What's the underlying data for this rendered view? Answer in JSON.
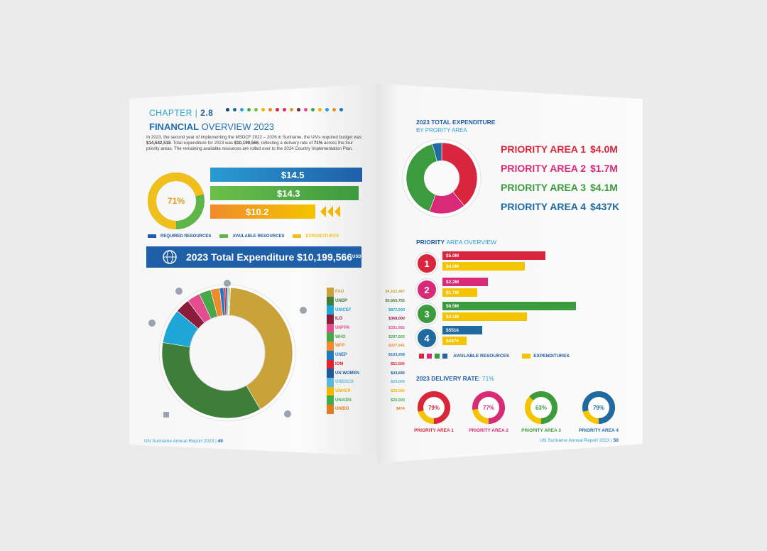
{
  "left_page": {
    "chapter_word": "CHAPTER |",
    "chapter_num": "2.8",
    "title_bold": "FINANCIAL",
    "title_rest": "OVERVIEW 2023",
    "intro_1": "In 2023, the second year of implementing the MSDCF 2022 – 2026 in Suriname, the UN's required budget was ",
    "intro_b1": "$14,542,518",
    "intro_2": ". Total expenditure for 2023 was ",
    "intro_b2": "$10,199,566",
    "intro_3": ", reflecting a delivery rate of ",
    "intro_b3": "71%",
    "intro_4": " across the four priority areas. The remaining available resources are rolled over to the 2024 Country Implementation Plan.",
    "delivery_pct": "71%",
    "resources": {
      "required": "$14.5",
      "available": "$14.3",
      "expenditures": "$10.2"
    },
    "legend": {
      "required": "REQUIRED RESOURCES",
      "available": "AVAILABLE RESOURCES",
      "expenditures": "EXPENDITURES"
    },
    "banner": {
      "text": "2023 Total Expenditure $10,199,566",
      "sup": "USD"
    },
    "agencies": [
      {
        "name": "FAO",
        "value": "$4,162,487",
        "color": "#c9a23a"
      },
      {
        "name": "UNDP",
        "value": "$3,665,755",
        "color": "#3f7d3b"
      },
      {
        "name": "UNICEF",
        "value": "$872,900",
        "color": "#1fa6d6"
      },
      {
        "name": "ILO",
        "value": "$368,000",
        "color": "#8b1d3b"
      },
      {
        "name": "UNFPA",
        "value": "$331,982",
        "color": "#e34c8d"
      },
      {
        "name": "WHO",
        "value": "$297,903",
        "color": "#46a84a"
      },
      {
        "name": "WFP",
        "value": "$227,041",
        "color": "#f08a2a"
      },
      {
        "name": "UNEP",
        "value": "$103,268",
        "color": "#1f79c2"
      },
      {
        "name": "IOM",
        "value": "$51,500",
        "color": "#e0232f"
      },
      {
        "name": "UN WOMEN",
        "value": "$43,836",
        "color": "#1e5a9c"
      },
      {
        "name": "UNESCO",
        "value": "$29,800",
        "color": "#5bb6e0"
      },
      {
        "name": "UNHCR",
        "value": "$25,000",
        "color": "#f5b400"
      },
      {
        "name": "UNAIDS",
        "value": "$20,500",
        "color": "#3fae4a"
      },
      {
        "name": "UNIDO",
        "value": "$474",
        "color": "#e07b1f"
      }
    ],
    "footer_text": "UN Suriname Annual Report 2023 |",
    "footer_page": "49"
  },
  "right_page": {
    "exp_title": "2023 TOTAL EXPENDITURE",
    "exp_sub": "BY PRORITY AREA",
    "priority_areas": [
      {
        "label": "PRIORITY AREA 1",
        "amount": "$4.0M",
        "color": "#d9263f"
      },
      {
        "label": "PRIORITY AREA 2",
        "amount": "$1.7M",
        "color": "#d92a78"
      },
      {
        "label": "PRIORITY AREA 3",
        "amount": "$4.1M",
        "color": "#3c9a3f"
      },
      {
        "label": "PRIORITY AREA 4",
        "amount": "$437K",
        "color": "#1f6aa0"
      }
    ],
    "overview_title_bold": "PRIORITY",
    "overview_title_rest": "AREA OVERVIEW",
    "overview": [
      {
        "num": "1",
        "available": "$5.0M",
        "available_value": 5.0,
        "expenditure": "$4.0M",
        "expenditure_value": 4.0,
        "color": "#d9263f"
      },
      {
        "num": "2",
        "available": "$2.2M",
        "available_value": 2.2,
        "expenditure": "$1.7M",
        "expenditure_value": 1.7,
        "color": "#d92a78"
      },
      {
        "num": "3",
        "available": "$6.5M",
        "available_value": 6.5,
        "expenditure": "$4.1M",
        "expenditure_value": 4.1,
        "color": "#3c9a3f"
      },
      {
        "num": "4",
        "available": "$551k",
        "available_value": 0.551,
        "expenditure": "$437k",
        "expenditure_value": 0.437,
        "color": "#1f6aa0"
      }
    ],
    "legend_available": "AVAILABLE RESOURCES",
    "legend_expenditures": "EXPENDITURES",
    "delivery_title": "2023 DELIVERY RATE",
    "delivery_value": ": 71%",
    "delivery": [
      {
        "pct": "79%",
        "rate": 0.79,
        "label": "PRIORITY AREA 1",
        "color": "#d9263f"
      },
      {
        "pct": "77%",
        "rate": 0.77,
        "label": "PRIORITY AREA 2",
        "color": "#d92a78"
      },
      {
        "pct": "63%",
        "rate": 0.63,
        "label": "PRIORITY AREA 3",
        "color": "#3c9a3f"
      },
      {
        "pct": "79%",
        "rate": 0.79,
        "label": "PRIORITY AREA 4",
        "color": "#1f6aa0"
      }
    ],
    "footer_text": "UN Suriname Annual Report 2023 |",
    "footer_page": "50"
  }
}
